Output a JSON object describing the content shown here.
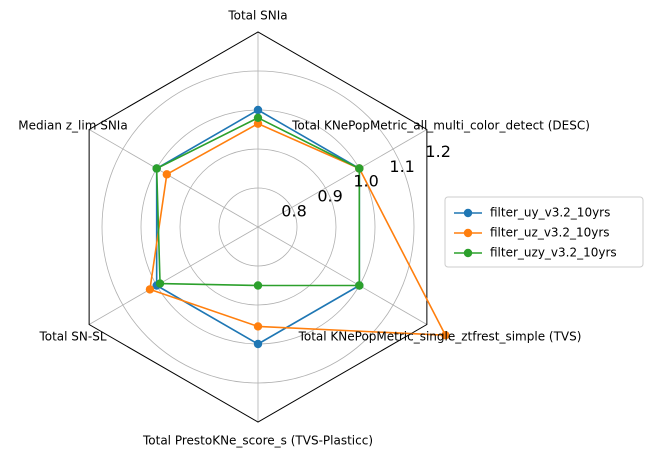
{
  "chart_data": {
    "type": "radar",
    "axes": [
      "Total KNePopMetric_all_multi_color_detect (DESC)",
      "Total SNIa",
      "Median z_lim SNIa",
      "Total SN-SL",
      "Total PrestoKNe_score_s (TVS-Plasticc)",
      "Total KNePopMetric_single_ztfrest_simple (TVS)"
    ],
    "rlim": [
      0.7,
      1.2
    ],
    "ticks": [
      "0.8",
      "0.9",
      "1.0",
      "1.1",
      "1.2"
    ],
    "tick_values": [
      0.8,
      0.9,
      1.0,
      1.1,
      1.2
    ],
    "grid": true,
    "legend_position": "right",
    "series": [
      {
        "name": "filter_uy_v3.2_10yrs",
        "color": "#1f77b4",
        "values": [
          1.0,
          1.0,
          1.0,
          1.0,
          1.0,
          1.0
        ]
      },
      {
        "name": "filter_uz_v3.2_10yrs",
        "color": "#ff7f0e",
        "values": [
          1.0,
          0.965,
          0.97,
          1.02,
          0.955,
          1.255
        ]
      },
      {
        "name": "filter_uzy_v3.2_10yrs",
        "color": "#2ca02c",
        "values": [
          1.0,
          0.98,
          1.0,
          0.99,
          0.85,
          1.0
        ]
      }
    ]
  }
}
